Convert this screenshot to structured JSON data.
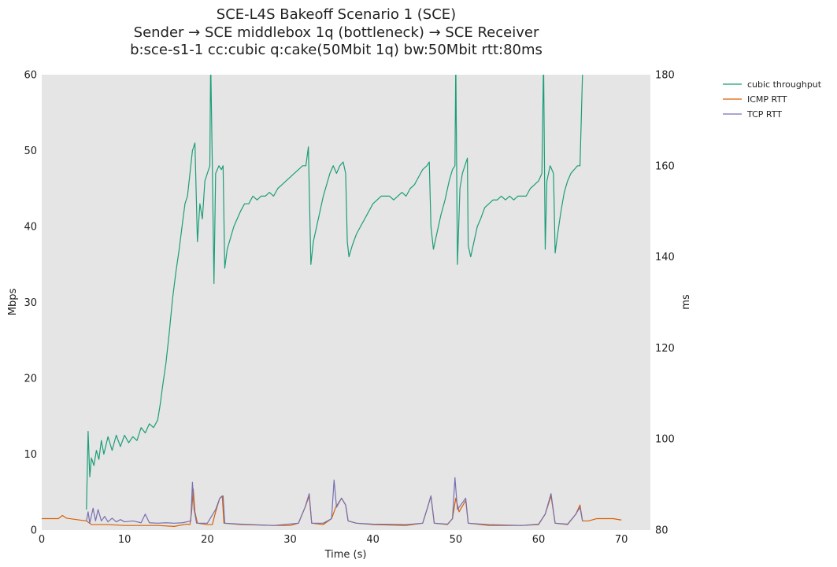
{
  "chart_data": {
    "type": "line",
    "title": "SCE-L4S Bakeoff Scenario 1 (SCE)",
    "subtitle_lines": [
      "Sender → SCE middlebox 1q (bottleneck) → SCE Receiver",
      "b:sce-s1-1 cc:cubic q:cake(50Mbit 1q) bw:50Mbit rtt:80ms"
    ],
    "xlabel": "Time (s)",
    "ylabel": "Mbps",
    "y2label": "ms",
    "xlim": [
      0,
      73.5
    ],
    "ylim": [
      0,
      60
    ],
    "y2lim": [
      80,
      180
    ],
    "xticks": [
      "0",
      "10",
      "20",
      "30",
      "40",
      "50",
      "60",
      "70"
    ],
    "yticks": [
      "0",
      "10",
      "20",
      "30",
      "40",
      "50",
      "60"
    ],
    "y2ticks": [
      "80",
      "100",
      "120",
      "140",
      "160",
      "180"
    ],
    "grid": false,
    "plot_background": "#e5e5e5",
    "legend_position": "outside-right-top",
    "series": [
      {
        "name": "cubic throughput",
        "axis": "left",
        "color": "#1b9e77",
        "points": [
          [
            5.4,
            2.7
          ],
          [
            5.6,
            13.0
          ],
          [
            5.8,
            7.0
          ],
          [
            6.0,
            9.5
          ],
          [
            6.3,
            8.5
          ],
          [
            6.6,
            10.5
          ],
          [
            6.9,
            9.3
          ],
          [
            7.2,
            11.8
          ],
          [
            7.5,
            10.0
          ],
          [
            8.0,
            12.3
          ],
          [
            8.5,
            10.5
          ],
          [
            9.0,
            12.5
          ],
          [
            9.5,
            11.0
          ],
          [
            10.0,
            12.5
          ],
          [
            10.5,
            11.5
          ],
          [
            11.0,
            12.3
          ],
          [
            11.5,
            11.8
          ],
          [
            12.0,
            13.5
          ],
          [
            12.5,
            12.8
          ],
          [
            13.0,
            14.0
          ],
          [
            13.5,
            13.5
          ],
          [
            14.0,
            14.5
          ],
          [
            14.3,
            16.5
          ],
          [
            14.6,
            19.0
          ],
          [
            15.0,
            22.0
          ],
          [
            15.4,
            26.0
          ],
          [
            15.8,
            30.5
          ],
          [
            16.2,
            34.0
          ],
          [
            16.6,
            37.0
          ],
          [
            17.0,
            40.5
          ],
          [
            17.3,
            43.0
          ],
          [
            17.6,
            44.0
          ],
          [
            17.9,
            47.0
          ],
          [
            18.2,
            50.0
          ],
          [
            18.5,
            51.0
          ],
          [
            18.8,
            38.0
          ],
          [
            19.1,
            43.0
          ],
          [
            19.4,
            41.0
          ],
          [
            19.7,
            46.0
          ],
          [
            20.0,
            47.0
          ],
          [
            20.3,
            48.0
          ],
          [
            20.4,
            62.0
          ],
          [
            20.6,
            48.0
          ],
          [
            20.8,
            32.5
          ],
          [
            21.0,
            47.0
          ],
          [
            21.4,
            48.0
          ],
          [
            21.7,
            47.5
          ],
          [
            21.9,
            48.0
          ],
          [
            22.1,
            34.5
          ],
          [
            22.4,
            37.0
          ],
          [
            22.8,
            38.5
          ],
          [
            23.2,
            40.0
          ],
          [
            23.6,
            41.0
          ],
          [
            24.0,
            42.0
          ],
          [
            24.5,
            43.0
          ],
          [
            25.0,
            43.0
          ],
          [
            25.5,
            44.0
          ],
          [
            26.0,
            43.5
          ],
          [
            26.5,
            44.0
          ],
          [
            27.0,
            44.0
          ],
          [
            27.5,
            44.5
          ],
          [
            28.0,
            44.0
          ],
          [
            28.5,
            45.0
          ],
          [
            29.0,
            45.5
          ],
          [
            29.5,
            46.0
          ],
          [
            30.0,
            46.5
          ],
          [
            30.5,
            47.0
          ],
          [
            31.0,
            47.5
          ],
          [
            31.5,
            48.0
          ],
          [
            31.9,
            48.0
          ],
          [
            32.2,
            50.5
          ],
          [
            32.5,
            35.0
          ],
          [
            32.8,
            38.0
          ],
          [
            33.2,
            40.0
          ],
          [
            33.6,
            42.0
          ],
          [
            34.0,
            44.0
          ],
          [
            34.4,
            45.5
          ],
          [
            34.8,
            47.0
          ],
          [
            35.2,
            48.0
          ],
          [
            35.6,
            47.0
          ],
          [
            36.0,
            48.0
          ],
          [
            36.4,
            48.5
          ],
          [
            36.7,
            47.0
          ],
          [
            36.9,
            38.0
          ],
          [
            37.1,
            36.0
          ],
          [
            37.5,
            37.5
          ],
          [
            38.0,
            39.0
          ],
          [
            38.5,
            40.0
          ],
          [
            39.0,
            41.0
          ],
          [
            39.5,
            42.0
          ],
          [
            40.0,
            43.0
          ],
          [
            40.5,
            43.5
          ],
          [
            41.0,
            44.0
          ],
          [
            41.5,
            44.0
          ],
          [
            42.0,
            44.0
          ],
          [
            42.5,
            43.5
          ],
          [
            43.0,
            44.0
          ],
          [
            43.5,
            44.5
          ],
          [
            44.0,
            44.0
          ],
          [
            44.5,
            45.0
          ],
          [
            45.0,
            45.5
          ],
          [
            45.5,
            46.5
          ],
          [
            46.0,
            47.5
          ],
          [
            46.5,
            48.0
          ],
          [
            46.8,
            48.5
          ],
          [
            47.0,
            40.0
          ],
          [
            47.3,
            37.0
          ],
          [
            47.7,
            39.0
          ],
          [
            48.2,
            41.5
          ],
          [
            48.7,
            43.5
          ],
          [
            49.2,
            46.0
          ],
          [
            49.6,
            47.5
          ],
          [
            49.9,
            48.0
          ],
          [
            50.0,
            62.0
          ],
          [
            50.2,
            35.0
          ],
          [
            50.5,
            45.0
          ],
          [
            50.8,
            47.0
          ],
          [
            51.1,
            48.0
          ],
          [
            51.4,
            49.0
          ],
          [
            51.5,
            37.5
          ],
          [
            51.8,
            36.0
          ],
          [
            52.2,
            38.0
          ],
          [
            52.6,
            40.0
          ],
          [
            53.0,
            41.0
          ],
          [
            53.5,
            42.5
          ],
          [
            54.0,
            43.0
          ],
          [
            54.5,
            43.5
          ],
          [
            55.0,
            43.5
          ],
          [
            55.5,
            44.0
          ],
          [
            56.0,
            43.5
          ],
          [
            56.5,
            44.0
          ],
          [
            57.0,
            43.5
          ],
          [
            57.5,
            44.0
          ],
          [
            58.0,
            44.0
          ],
          [
            58.5,
            44.0
          ],
          [
            59.0,
            45.0
          ],
          [
            59.5,
            45.5
          ],
          [
            60.0,
            46.0
          ],
          [
            60.4,
            47.0
          ],
          [
            60.6,
            62.0
          ],
          [
            60.8,
            37.0
          ],
          [
            61.0,
            46.0
          ],
          [
            61.4,
            48.0
          ],
          [
            61.8,
            47.0
          ],
          [
            62.0,
            36.5
          ],
          [
            62.3,
            39.0
          ],
          [
            62.7,
            42.0
          ],
          [
            63.1,
            44.5
          ],
          [
            63.5,
            46.0
          ],
          [
            63.9,
            47.0
          ],
          [
            64.3,
            47.5
          ],
          [
            64.7,
            48.0
          ],
          [
            65.0,
            48.0
          ],
          [
            65.3,
            60.0
          ],
          [
            65.6,
            62.0
          ]
        ]
      },
      {
        "name": "ICMP RTT",
        "axis": "right",
        "color": "#d95f02",
        "points": [
          [
            0.0,
            82.5
          ],
          [
            2.0,
            82.5
          ],
          [
            2.5,
            83.2
          ],
          [
            3.0,
            82.6
          ],
          [
            5.4,
            82.0
          ],
          [
            6.0,
            81.2
          ],
          [
            8.0,
            81.2
          ],
          [
            10.0,
            81.0
          ],
          [
            12.0,
            81.0
          ],
          [
            14.0,
            81.0
          ],
          [
            16.0,
            80.8
          ],
          [
            17.5,
            81.3
          ],
          [
            17.9,
            81.2
          ],
          [
            18.1,
            84.0
          ],
          [
            18.3,
            89.0
          ],
          [
            18.5,
            84.0
          ],
          [
            18.8,
            81.5
          ],
          [
            20.0,
            81.2
          ],
          [
            20.6,
            81.2
          ],
          [
            21.0,
            84.0
          ],
          [
            21.5,
            87.0
          ],
          [
            21.8,
            87.5
          ],
          [
            22.0,
            81.5
          ],
          [
            24.0,
            81.2
          ],
          [
            28.0,
            81.0
          ],
          [
            30.0,
            81.0
          ],
          [
            31.0,
            81.5
          ],
          [
            31.8,
            85.0
          ],
          [
            32.3,
            87.5
          ],
          [
            32.6,
            81.5
          ],
          [
            34.0,
            81.2
          ],
          [
            35.0,
            82.5
          ],
          [
            35.5,
            85.0
          ],
          [
            36.2,
            87.0
          ],
          [
            36.7,
            85.5
          ],
          [
            37.0,
            82.0
          ],
          [
            38.0,
            81.5
          ],
          [
            40.0,
            81.2
          ],
          [
            44.0,
            81.0
          ],
          [
            46.0,
            81.5
          ],
          [
            46.6,
            85.0
          ],
          [
            47.0,
            87.5
          ],
          [
            47.4,
            81.5
          ],
          [
            49.0,
            81.2
          ],
          [
            49.6,
            82.5
          ],
          [
            50.0,
            87.0
          ],
          [
            50.4,
            84.0
          ],
          [
            51.2,
            86.5
          ],
          [
            51.5,
            81.5
          ],
          [
            54.0,
            81.0
          ],
          [
            58.0,
            81.0
          ],
          [
            60.0,
            81.2
          ],
          [
            60.8,
            83.5
          ],
          [
            61.5,
            87.5
          ],
          [
            62.0,
            81.5
          ],
          [
            63.5,
            81.2
          ],
          [
            64.5,
            83.5
          ],
          [
            65.0,
            85.5
          ],
          [
            65.3,
            82.0
          ],
          [
            66.0,
            82.0
          ],
          [
            67.0,
            82.5
          ],
          [
            68.0,
            82.5
          ],
          [
            69.0,
            82.5
          ],
          [
            70.0,
            82.2
          ]
        ]
      },
      {
        "name": "TCP RTT",
        "axis": "right",
        "color": "#7570b3",
        "points": [
          [
            5.4,
            82.0
          ],
          [
            5.6,
            84.0
          ],
          [
            5.8,
            81.5
          ],
          [
            6.2,
            84.8
          ],
          [
            6.5,
            82.0
          ],
          [
            6.8,
            84.5
          ],
          [
            7.2,
            82.0
          ],
          [
            7.6,
            83.0
          ],
          [
            8.0,
            81.8
          ],
          [
            8.5,
            82.6
          ],
          [
            9.0,
            81.8
          ],
          [
            9.5,
            82.3
          ],
          [
            10.0,
            81.8
          ],
          [
            11.0,
            82.0
          ],
          [
            12.0,
            81.6
          ],
          [
            12.5,
            83.5
          ],
          [
            13.0,
            81.6
          ],
          [
            14.0,
            81.5
          ],
          [
            15.0,
            81.6
          ],
          [
            16.0,
            81.5
          ],
          [
            17.0,
            81.6
          ],
          [
            18.0,
            82.0
          ],
          [
            18.2,
            90.5
          ],
          [
            18.4,
            84.5
          ],
          [
            18.7,
            81.5
          ],
          [
            20.0,
            81.5
          ],
          [
            21.0,
            84.5
          ],
          [
            21.5,
            87.0
          ],
          [
            21.9,
            87.5
          ],
          [
            22.1,
            81.5
          ],
          [
            24.0,
            81.3
          ],
          [
            28.0,
            81.0
          ],
          [
            31.0,
            81.5
          ],
          [
            31.8,
            85.0
          ],
          [
            32.3,
            88.0
          ],
          [
            32.6,
            81.5
          ],
          [
            34.0,
            81.5
          ],
          [
            35.0,
            82.5
          ],
          [
            35.3,
            91.0
          ],
          [
            35.6,
            85.0
          ],
          [
            36.2,
            87.0
          ],
          [
            36.7,
            85.5
          ],
          [
            37.0,
            82.0
          ],
          [
            38.0,
            81.5
          ],
          [
            40.0,
            81.3
          ],
          [
            44.0,
            81.2
          ],
          [
            46.0,
            81.5
          ],
          [
            46.6,
            85.0
          ],
          [
            47.0,
            87.5
          ],
          [
            47.4,
            81.5
          ],
          [
            49.0,
            81.3
          ],
          [
            49.6,
            82.5
          ],
          [
            49.9,
            91.5
          ],
          [
            50.2,
            84.5
          ],
          [
            51.2,
            87.0
          ],
          [
            51.5,
            81.5
          ],
          [
            54.0,
            81.2
          ],
          [
            58.0,
            81.0
          ],
          [
            60.0,
            81.3
          ],
          [
            60.8,
            83.5
          ],
          [
            61.5,
            88.0
          ],
          [
            62.0,
            81.5
          ],
          [
            63.5,
            81.3
          ],
          [
            64.5,
            83.5
          ],
          [
            65.0,
            85.0
          ],
          [
            65.3,
            82.0
          ]
        ]
      }
    ]
  }
}
